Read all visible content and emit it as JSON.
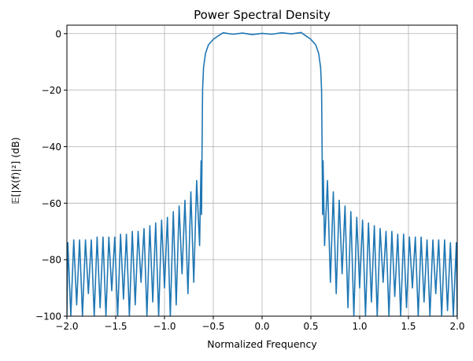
{
  "chart_data": {
    "type": "line",
    "title": "Power Spectral Density",
    "xlabel": "Normalized Frequency",
    "ylabel": "𝔼[|X(f)|²] (dB)",
    "xlim": [
      -2.0,
      2.0
    ],
    "ylim": [
      -100,
      3
    ],
    "xticks": [
      -2.0,
      -1.5,
      -1.0,
      -0.5,
      0.0,
      0.5,
      1.0,
      1.5,
      2.0
    ],
    "xtick_labels": [
      "−2.0",
      "−1.5",
      "−1.0",
      "−0.5",
      "0.0",
      "0.5",
      "1.0",
      "1.5",
      "2.0"
    ],
    "yticks": [
      0,
      -20,
      -40,
      -60,
      -80,
      -100
    ],
    "ytick_labels": [
      "0",
      "−20",
      "−40",
      "−60",
      "−80",
      "−100"
    ],
    "grid": true,
    "line_color": "#1f77b4",
    "series": [
      {
        "x": [
          -2.0,
          -1.99,
          -1.96,
          -1.93,
          -1.9,
          -1.87,
          -1.84,
          -1.81,
          -1.78,
          -1.75,
          -1.72,
          -1.69,
          -1.66,
          -1.63,
          -1.6,
          -1.57,
          -1.54,
          -1.51,
          -1.48,
          -1.45,
          -1.42,
          -1.39,
          -1.36,
          -1.33,
          -1.3,
          -1.27,
          -1.24,
          -1.21,
          -1.18,
          -1.15,
          -1.12,
          -1.09,
          -1.06,
          -1.03,
          -1.0,
          -0.97,
          -0.94,
          -0.91,
          -0.88,
          -0.85,
          -0.82,
          -0.79,
          -0.76,
          -0.73,
          -0.7,
          -0.67,
          -0.64,
          -0.625,
          -0.62,
          -0.615,
          -0.61,
          -0.6,
          -0.58,
          -0.55,
          -0.5,
          -0.45,
          -0.4,
          -0.3,
          -0.2,
          -0.1,
          0.0,
          0.1,
          0.2,
          0.3,
          0.4,
          0.45,
          0.5,
          0.55,
          0.58,
          0.6,
          0.61,
          0.615,
          0.62,
          0.625,
          0.64,
          0.67,
          0.7,
          0.73,
          0.76,
          0.79,
          0.82,
          0.85,
          0.88,
          0.91,
          0.94,
          0.97,
          1.0,
          1.03,
          1.06,
          1.09,
          1.12,
          1.15,
          1.18,
          1.21,
          1.24,
          1.27,
          1.3,
          1.33,
          1.36,
          1.39,
          1.42,
          1.45,
          1.48,
          1.51,
          1.54,
          1.57,
          1.6,
          1.63,
          1.66,
          1.69,
          1.72,
          1.75,
          1.78,
          1.81,
          1.84,
          1.87,
          1.9,
          1.93,
          1.96,
          1.99,
          2.0
        ],
        "y": [
          -100,
          -74,
          -100,
          -73,
          -96,
          -73,
          -100,
          -73,
          -92,
          -73,
          -100,
          -72,
          -97,
          -72,
          -100,
          -72,
          -91,
          -72,
          -100,
          -71,
          -94,
          -71,
          -100,
          -70,
          -96,
          -70,
          -88,
          -69,
          -100,
          -68,
          -95,
          -67,
          -100,
          -66,
          -90,
          -65,
          -100,
          -63,
          -96,
          -61,
          -85,
          -59,
          -92,
          -56,
          -88,
          -52,
          -75,
          -45,
          -64,
          -42,
          -20,
          -12,
          -7,
          -4,
          -2,
          -0.8,
          0.3,
          -0.2,
          0.2,
          -0.3,
          0.1,
          -0.2,
          0.3,
          -0.1,
          0.4,
          -0.8,
          -2,
          -4,
          -7,
          -12,
          -20,
          -42,
          -64,
          -45,
          -75,
          -52,
          -88,
          -56,
          -92,
          -59,
          -85,
          -61,
          -97,
          -63,
          -100,
          -65,
          -90,
          -66,
          -100,
          -67,
          -95,
          -68,
          -100,
          -69,
          -88,
          -70,
          -100,
          -70,
          -93,
          -71,
          -100,
          -71,
          -97,
          -72,
          -90,
          -72,
          -100,
          -72,
          -95,
          -73,
          -100,
          -73,
          -92,
          -73,
          -100,
          -73,
          -98,
          -74,
          -100,
          -74,
          -100
        ]
      }
    ]
  }
}
